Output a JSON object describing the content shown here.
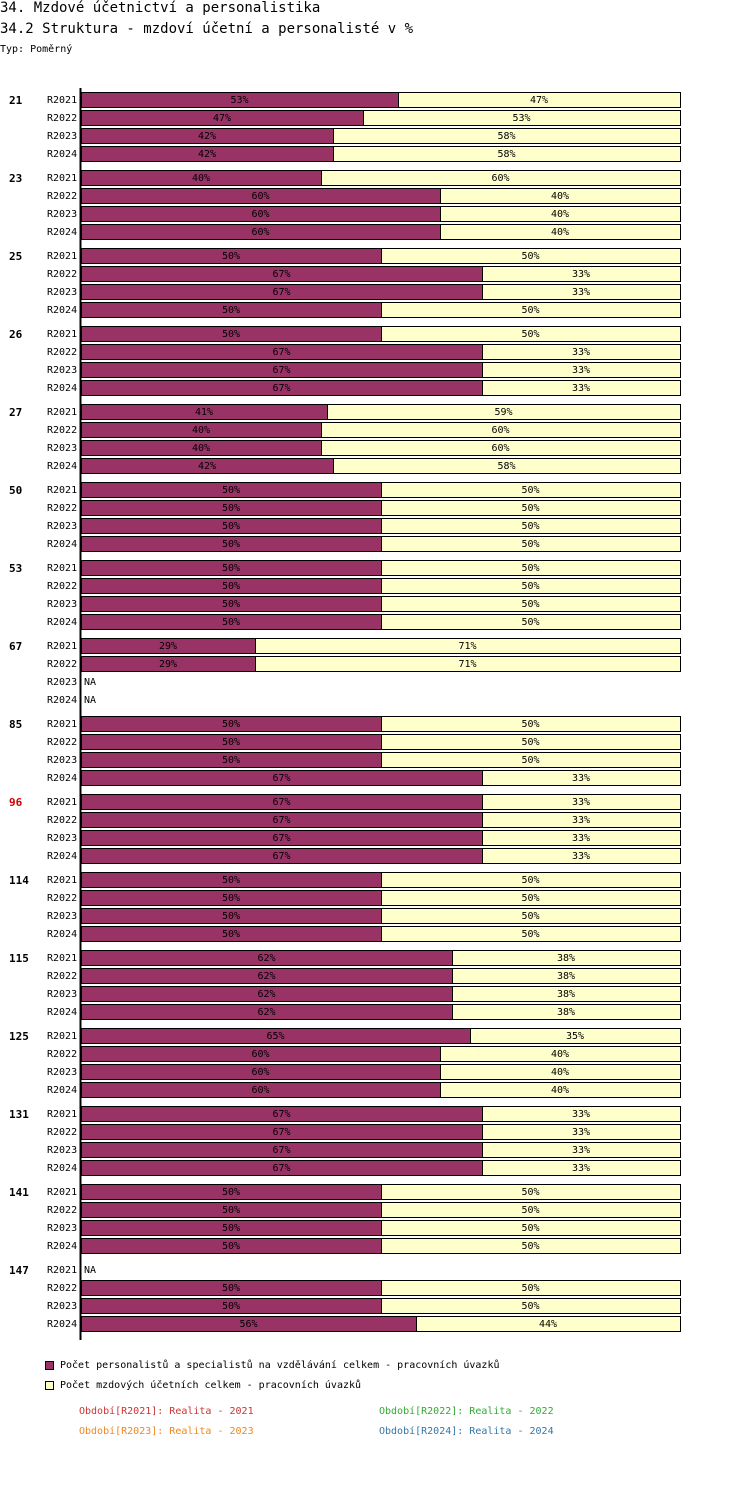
{
  "header": {
    "title": "34. Mzdové účetnictví a personalistika",
    "subtitle": "34.2 Struktura - mzdoví účetní a personalisté v %",
    "type_label": "Typ: Poměrný"
  },
  "colors": {
    "series1": "#993366",
    "series2": "#ffffcc",
    "highlight_group": "#cc0000",
    "p2021": "#cc3333",
    "p2022": "#33aa33",
    "p2023": "#ee8822",
    "p2024": "#3377aa"
  },
  "legend": {
    "series1_label": "Počet personalistů a specialistů na vzdělávání celkem - pracovních úvazků",
    "series2_label": "Počet mzdových účetních celkem - pracovních úvazků",
    "periods": [
      "Období[R2021]: Realita - 2021",
      "Období[R2022]: Realita - 2022",
      "Období[R2023]: Realita - 2023",
      "Období[R2024]: Realita - 2024"
    ]
  },
  "chart_data": {
    "type": "bar",
    "orientation": "horizontal",
    "stacked": true,
    "normalized": "percent",
    "xlim": [
      0,
      100
    ],
    "series_names": [
      "Počet personalistů a specialistů na vzdělávání celkem - pracovních úvazků",
      "Počet mzdových účetních celkem - pracovních úvazků"
    ],
    "na_label": "NA",
    "highlight_group": "96",
    "groups": [
      {
        "id": "21",
        "rows": [
          {
            "period": "R2021",
            "values": [
              53,
              47
            ]
          },
          {
            "period": "R2022",
            "values": [
              47,
              53
            ]
          },
          {
            "period": "R2023",
            "values": [
              42,
              58
            ]
          },
          {
            "period": "R2024",
            "values": [
              42,
              58
            ]
          }
        ]
      },
      {
        "id": "23",
        "rows": [
          {
            "period": "R2021",
            "values": [
              40,
              60
            ]
          },
          {
            "period": "R2022",
            "values": [
              60,
              40
            ]
          },
          {
            "period": "R2023",
            "values": [
              60,
              40
            ]
          },
          {
            "period": "R2024",
            "values": [
              60,
              40
            ]
          }
        ]
      },
      {
        "id": "25",
        "rows": [
          {
            "period": "R2021",
            "values": [
              50,
              50
            ]
          },
          {
            "period": "R2022",
            "values": [
              67,
              33
            ]
          },
          {
            "period": "R2023",
            "values": [
              67,
              33
            ]
          },
          {
            "period": "R2024",
            "values": [
              50,
              50
            ]
          }
        ]
      },
      {
        "id": "26",
        "rows": [
          {
            "period": "R2021",
            "values": [
              50,
              50
            ]
          },
          {
            "period": "R2022",
            "values": [
              67,
              33
            ]
          },
          {
            "period": "R2023",
            "values": [
              67,
              33
            ]
          },
          {
            "period": "R2024",
            "values": [
              67,
              33
            ]
          }
        ]
      },
      {
        "id": "27",
        "rows": [
          {
            "period": "R2021",
            "values": [
              41,
              59
            ]
          },
          {
            "period": "R2022",
            "values": [
              40,
              60
            ]
          },
          {
            "period": "R2023",
            "values": [
              40,
              60
            ]
          },
          {
            "period": "R2024",
            "values": [
              42,
              58
            ]
          }
        ]
      },
      {
        "id": "50",
        "rows": [
          {
            "period": "R2021",
            "values": [
              50,
              50
            ]
          },
          {
            "period": "R2022",
            "values": [
              50,
              50
            ]
          },
          {
            "period": "R2023",
            "values": [
              50,
              50
            ]
          },
          {
            "period": "R2024",
            "values": [
              50,
              50
            ]
          }
        ]
      },
      {
        "id": "53",
        "rows": [
          {
            "period": "R2021",
            "values": [
              50,
              50
            ]
          },
          {
            "period": "R2022",
            "values": [
              50,
              50
            ]
          },
          {
            "period": "R2023",
            "values": [
              50,
              50
            ]
          },
          {
            "period": "R2024",
            "values": [
              50,
              50
            ]
          }
        ]
      },
      {
        "id": "67",
        "rows": [
          {
            "period": "R2021",
            "values": [
              29,
              71
            ]
          },
          {
            "period": "R2022",
            "values": [
              29,
              71
            ]
          },
          {
            "period": "R2023",
            "values": null
          },
          {
            "period": "R2024",
            "values": null
          }
        ]
      },
      {
        "id": "85",
        "rows": [
          {
            "period": "R2021",
            "values": [
              50,
              50
            ]
          },
          {
            "period": "R2022",
            "values": [
              50,
              50
            ]
          },
          {
            "period": "R2023",
            "values": [
              50,
              50
            ]
          },
          {
            "period": "R2024",
            "values": [
              67,
              33
            ]
          }
        ]
      },
      {
        "id": "96",
        "rows": [
          {
            "period": "R2021",
            "values": [
              67,
              33
            ]
          },
          {
            "period": "R2022",
            "values": [
              67,
              33
            ]
          },
          {
            "period": "R2023",
            "values": [
              67,
              33
            ]
          },
          {
            "period": "R2024",
            "values": [
              67,
              33
            ]
          }
        ]
      },
      {
        "id": "114",
        "rows": [
          {
            "period": "R2021",
            "values": [
              50,
              50
            ]
          },
          {
            "period": "R2022",
            "values": [
              50,
              50
            ]
          },
          {
            "period": "R2023",
            "values": [
              50,
              50
            ]
          },
          {
            "period": "R2024",
            "values": [
              50,
              50
            ]
          }
        ]
      },
      {
        "id": "115",
        "rows": [
          {
            "period": "R2021",
            "values": [
              62,
              38
            ]
          },
          {
            "period": "R2022",
            "values": [
              62,
              38
            ]
          },
          {
            "period": "R2023",
            "values": [
              62,
              38
            ]
          },
          {
            "period": "R2024",
            "values": [
              62,
              38
            ]
          }
        ]
      },
      {
        "id": "125",
        "rows": [
          {
            "period": "R2021",
            "values": [
              65,
              35
            ]
          },
          {
            "period": "R2022",
            "values": [
              60,
              40
            ]
          },
          {
            "period": "R2023",
            "values": [
              60,
              40
            ]
          },
          {
            "period": "R2024",
            "values": [
              60,
              40
            ]
          }
        ]
      },
      {
        "id": "131",
        "rows": [
          {
            "period": "R2021",
            "values": [
              67,
              33
            ]
          },
          {
            "period": "R2022",
            "values": [
              67,
              33
            ]
          },
          {
            "period": "R2023",
            "values": [
              67,
              33
            ]
          },
          {
            "period": "R2024",
            "values": [
              67,
              33
            ]
          }
        ]
      },
      {
        "id": "141",
        "rows": [
          {
            "period": "R2021",
            "values": [
              50,
              50
            ]
          },
          {
            "period": "R2022",
            "values": [
              50,
              50
            ]
          },
          {
            "period": "R2023",
            "values": [
              50,
              50
            ]
          },
          {
            "period": "R2024",
            "values": [
              50,
              50
            ]
          }
        ]
      },
      {
        "id": "147",
        "rows": [
          {
            "period": "R2021",
            "values": null
          },
          {
            "period": "R2022",
            "values": [
              50,
              50
            ]
          },
          {
            "period": "R2023",
            "values": [
              50,
              50
            ]
          },
          {
            "period": "R2024",
            "values": [
              56,
              44
            ]
          }
        ]
      }
    ]
  }
}
